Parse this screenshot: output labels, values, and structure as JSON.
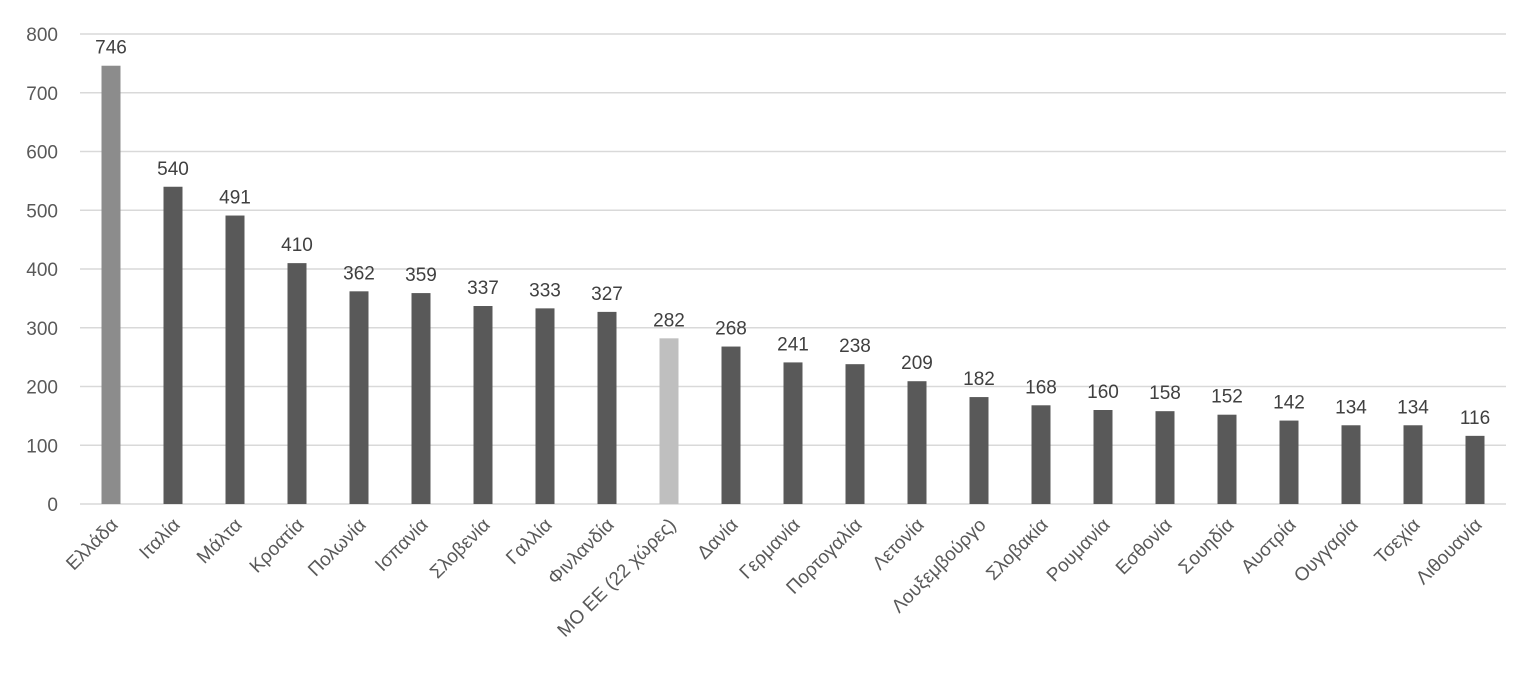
{
  "chart_data": {
    "type": "bar",
    "categories": [
      "Ελλάδα",
      "Ιταλία",
      "Μάλτα",
      "Κροατία",
      "Πολωνία",
      "Ισπανία",
      "Σλοβενία",
      "Γαλλία",
      "Φινλανδία",
      "ΜΟ ΕΕ (22 χώρες)",
      "Δανία",
      "Γερμανία",
      "Πορτογαλία",
      "Λετονία",
      "Λουξεμβούργο",
      "Σλοβακία",
      "Ρουμανία",
      "Εσθονία",
      "Σουηδία",
      "Αυστρία",
      "Ουγγαρία",
      "Τσεχία",
      "Λιθουανία"
    ],
    "values": [
      746,
      540,
      491,
      410,
      362,
      359,
      337,
      333,
      327,
      282,
      268,
      241,
      238,
      209,
      182,
      168,
      160,
      158,
      152,
      142,
      134,
      134,
      116
    ],
    "bar_colors": [
      "#8c8c8c",
      "#595959",
      "#595959",
      "#595959",
      "#595959",
      "#595959",
      "#595959",
      "#595959",
      "#595959",
      "#bfbfbf",
      "#595959",
      "#595959",
      "#595959",
      "#595959",
      "#595959",
      "#595959",
      "#595959",
      "#595959",
      "#595959",
      "#595959",
      "#595959",
      "#595959",
      "#595959"
    ],
    "ylim": [
      0,
      800
    ],
    "yticks": [
      0,
      100,
      200,
      300,
      400,
      500,
      600,
      700,
      800
    ],
    "grid": true,
    "title": "",
    "xlabel": "",
    "ylabel": "",
    "data_labels": true
  }
}
